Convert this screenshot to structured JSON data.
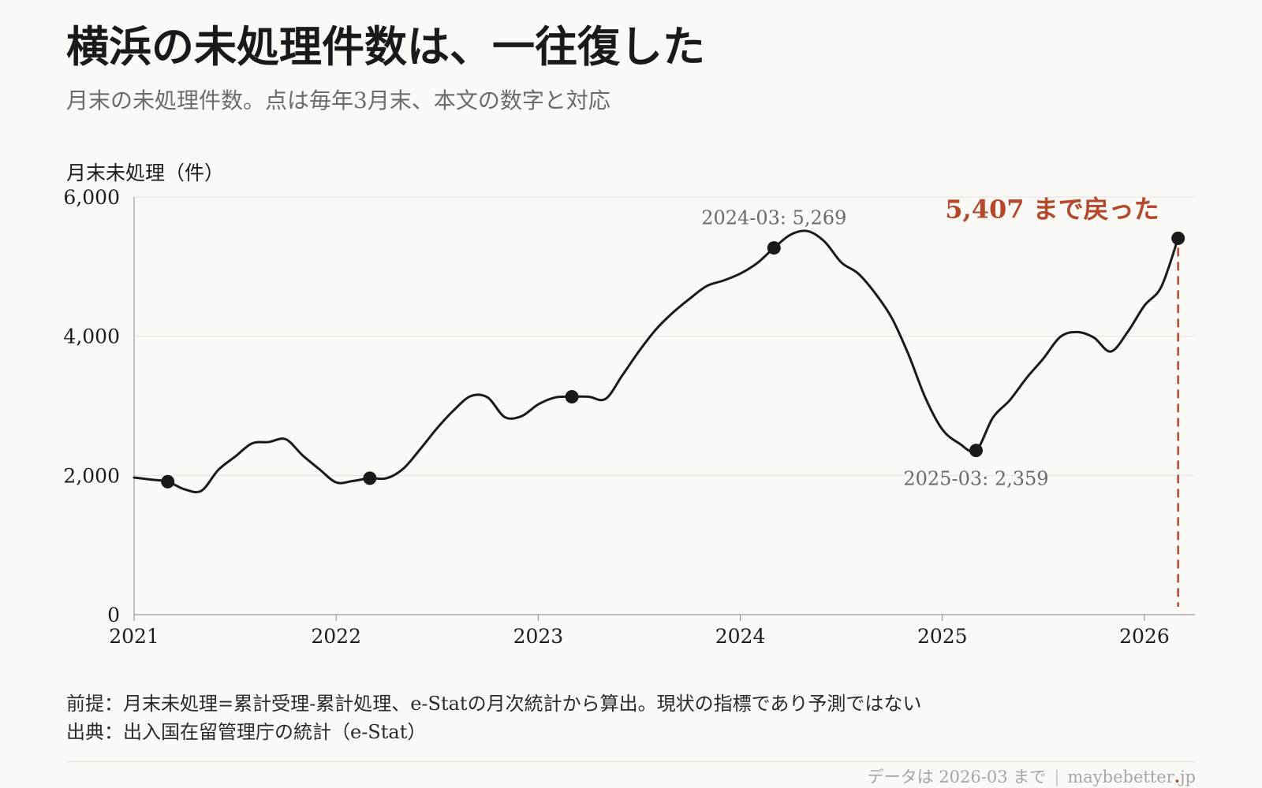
{
  "title": "横浜の未処理件数は、一往復した",
  "subtitle": "月末の未処理件数。点は毎年3月末、本文の数字と対応",
  "notes": {
    "premise": "前提：月末未処理=累計受理-累計処理、e-Statの月次統計から算出。現状の指標であり予測ではない",
    "source": "出典：出入国在留管理庁の統計（e-Stat）"
  },
  "footer": {
    "data_through": "データは 2026-03 まで",
    "separator": "|",
    "site_name": "maybebetter",
    "site_dot": ".",
    "site_tld": "jp"
  },
  "colors": {
    "background": "#faf9f5",
    "line": "#1a1a1a",
    "accent": "#b5472b",
    "grid": "#e6e4de",
    "muted_text": "#6b6b6b"
  },
  "chart_data": {
    "type": "line",
    "ylabel": "月末未処理（件）",
    "xlabel": "",
    "ylim": [
      0,
      6000
    ],
    "yticks": [
      0,
      2000,
      4000,
      6000
    ],
    "ytick_labels": [
      "0",
      "2,000",
      "4,000",
      "6,000"
    ],
    "xlim": [
      "2021-01",
      "2026-04"
    ],
    "xticks": [
      "2021-01",
      "2022-01",
      "2023-01",
      "2024-01",
      "2025-01",
      "2026-01"
    ],
    "xtick_labels": [
      "2021",
      "2022",
      "2023",
      "2024",
      "2025",
      "2026"
    ],
    "grid": "horizontal",
    "series": [
      {
        "x": [
          "2021-01",
          "2021-02",
          "2021-03",
          "2021-04",
          "2021-05",
          "2021-06",
          "2021-07",
          "2021-08",
          "2021-09",
          "2021-10",
          "2021-11",
          "2021-12",
          "2022-01",
          "2022-02",
          "2022-03",
          "2022-04",
          "2022-05",
          "2022-06",
          "2022-07",
          "2022-08",
          "2022-09",
          "2022-10",
          "2022-11",
          "2022-12",
          "2023-01",
          "2023-02",
          "2023-03",
          "2023-04",
          "2023-05",
          "2023-06",
          "2023-07",
          "2023-08",
          "2023-09",
          "2023-10",
          "2023-11",
          "2023-12",
          "2024-01",
          "2024-02",
          "2024-03",
          "2024-04",
          "2024-05",
          "2024-06",
          "2024-07",
          "2024-08",
          "2024-09",
          "2024-10",
          "2024-11",
          "2024-12",
          "2025-01",
          "2025-02",
          "2025-03",
          "2025-04",
          "2025-05",
          "2025-06",
          "2025-07",
          "2025-08",
          "2025-09",
          "2025-10",
          "2025-11",
          "2025-12",
          "2026-01",
          "2026-02",
          "2026-03"
        ],
        "values": [
          1970,
          1940,
          1910,
          1800,
          1780,
          2080,
          2270,
          2460,
          2480,
          2520,
          2290,
          2090,
          1900,
          1920,
          1960,
          1960,
          2100,
          2380,
          2680,
          2940,
          3140,
          3120,
          2840,
          2850,
          3020,
          3120,
          3130,
          3130,
          3100,
          3440,
          3790,
          4100,
          4340,
          4540,
          4720,
          4800,
          4900,
          5050,
          5269,
          5460,
          5510,
          5360,
          5060,
          4900,
          4620,
          4260,
          3730,
          3110,
          2660,
          2460,
          2359,
          2830,
          3080,
          3400,
          3680,
          3990,
          4060,
          3980,
          3780,
          4060,
          4440,
          4710,
          5407
        ]
      }
    ],
    "march_points": [
      "2021-03",
      "2022-03",
      "2023-03",
      "2024-03",
      "2025-03",
      "2026-03"
    ],
    "annotations": [
      {
        "x": "2024-03",
        "y": 5269,
        "text": "2024-03: 5,269",
        "position": "above"
      },
      {
        "x": "2025-03",
        "y": 2359,
        "text": "2025-03: 2,359",
        "position": "below"
      },
      {
        "x": "2026-03",
        "y": 5407,
        "text": "5,407 まで戻った",
        "position": "above-left",
        "emphasis": true,
        "dashed_line_to_axis": true
      }
    ]
  }
}
